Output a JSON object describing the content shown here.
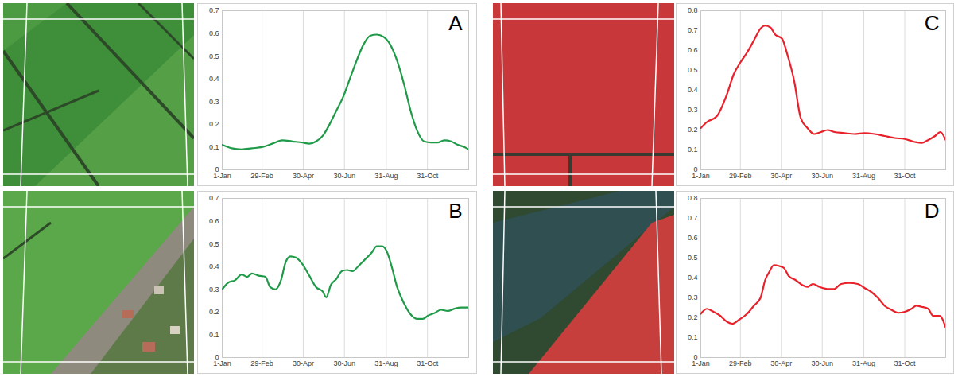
{
  "chart_data": [
    {
      "type": "line",
      "title": "A",
      "color": "#1f9a48",
      "grid": "x",
      "x": [
        1,
        15,
        30,
        45,
        60,
        75,
        90,
        105,
        120,
        130,
        140,
        150,
        160,
        170,
        180,
        190,
        200,
        210,
        220,
        230,
        240,
        250,
        260,
        270,
        280,
        290,
        300,
        310,
        320,
        330,
        340,
        350,
        360,
        366
      ],
      "values": [
        0.11,
        0.095,
        0.09,
        0.095,
        0.1,
        0.115,
        0.13,
        0.125,
        0.12,
        0.115,
        0.125,
        0.15,
        0.2,
        0.26,
        0.32,
        0.4,
        0.48,
        0.55,
        0.59,
        0.595,
        0.585,
        0.55,
        0.48,
        0.38,
        0.26,
        0.17,
        0.125,
        0.12,
        0.12,
        0.13,
        0.125,
        0.11,
        0.1,
        0.09
      ],
      "xlim": [
        1,
        366
      ],
      "xticks": [
        {
          "value": 1,
          "label": "1-Jan"
        },
        {
          "value": 60,
          "label": "29-Feb"
        },
        {
          "value": 121,
          "label": "30-Apr"
        },
        {
          "value": 182,
          "label": "30-Jun"
        },
        {
          "value": 244,
          "label": "31-Aug"
        },
        {
          "value": 305,
          "label": "31-Oct"
        }
      ],
      "ylim": [
        0,
        0.7
      ],
      "yticks": [
        0,
        0.1,
        0.2,
        0.3,
        0.4,
        0.5,
        0.6,
        0.7
      ]
    },
    {
      "type": "line",
      "title": "B",
      "color": "#1f9a48",
      "grid": "x",
      "x": [
        1,
        10,
        20,
        30,
        38,
        45,
        55,
        65,
        72,
        80,
        88,
        95,
        102,
        110,
        120,
        130,
        140,
        150,
        155,
        162,
        170,
        178,
        186,
        194,
        202,
        212,
        222,
        230,
        238,
        245,
        252,
        260,
        270,
        280,
        290,
        298,
        306,
        315,
        325,
        335,
        345,
        355,
        366
      ],
      "values": [
        0.3,
        0.33,
        0.34,
        0.365,
        0.355,
        0.37,
        0.36,
        0.355,
        0.31,
        0.3,
        0.34,
        0.42,
        0.445,
        0.44,
        0.41,
        0.36,
        0.31,
        0.29,
        0.265,
        0.32,
        0.345,
        0.38,
        0.385,
        0.38,
        0.4,
        0.43,
        0.46,
        0.49,
        0.49,
        0.465,
        0.4,
        0.31,
        0.24,
        0.19,
        0.17,
        0.17,
        0.185,
        0.195,
        0.21,
        0.205,
        0.215,
        0.22,
        0.22
      ],
      "xlim": [
        1,
        366
      ],
      "xticks": [
        {
          "value": 1,
          "label": "1-Jan"
        },
        {
          "value": 60,
          "label": "29-Feb"
        },
        {
          "value": 121,
          "label": "30-Apr"
        },
        {
          "value": 182,
          "label": "30-Jun"
        },
        {
          "value": 244,
          "label": "31-Aug"
        },
        {
          "value": 305,
          "label": "31-Oct"
        }
      ],
      "ylim": [
        0,
        0.7
      ],
      "yticks": [
        0,
        0.1,
        0.2,
        0.3,
        0.4,
        0.5,
        0.6,
        0.7
      ]
    },
    {
      "type": "line",
      "title": "C",
      "color": "#e8212b",
      "grid": "x",
      "x": [
        1,
        10,
        25,
        40,
        50,
        60,
        70,
        80,
        90,
        97,
        105,
        112,
        122,
        130,
        140,
        150,
        160,
        170,
        180,
        190,
        200,
        215,
        230,
        245,
        260,
        275,
        290,
        305,
        320,
        330,
        340,
        350,
        358,
        366
      ],
      "values": [
        0.21,
        0.24,
        0.27,
        0.38,
        0.48,
        0.54,
        0.59,
        0.65,
        0.71,
        0.725,
        0.715,
        0.68,
        0.66,
        0.58,
        0.45,
        0.26,
        0.21,
        0.18,
        0.19,
        0.2,
        0.19,
        0.185,
        0.18,
        0.185,
        0.18,
        0.17,
        0.16,
        0.155,
        0.14,
        0.135,
        0.15,
        0.17,
        0.19,
        0.15
      ],
      "xlim": [
        1,
        366
      ],
      "xticks": [
        {
          "value": 1,
          "label": "1-Jan"
        },
        {
          "value": 60,
          "label": "29-Feb"
        },
        {
          "value": 121,
          "label": "30-Apr"
        },
        {
          "value": 182,
          "label": "30-Jun"
        },
        {
          "value": 244,
          "label": "31-Aug"
        },
        {
          "value": 305,
          "label": "31-Oct"
        }
      ],
      "ylim": [
        0,
        0.8
      ],
      "yticks": [
        0,
        0.1,
        0.2,
        0.3,
        0.4,
        0.5,
        0.6,
        0.7,
        0.8
      ]
    },
    {
      "type": "line",
      "title": "D",
      "color": "#e8212b",
      "grid": "x",
      "x": [
        1,
        10,
        20,
        30,
        40,
        48,
        58,
        70,
        80,
        90,
        97,
        103,
        110,
        118,
        125,
        132,
        142,
        152,
        160,
        168,
        178,
        190,
        200,
        210,
        222,
        235,
        245,
        255,
        265,
        275,
        285,
        295,
        305,
        315,
        322,
        330,
        340,
        347,
        357,
        366
      ],
      "values": [
        0.22,
        0.245,
        0.23,
        0.21,
        0.18,
        0.17,
        0.19,
        0.22,
        0.26,
        0.3,
        0.39,
        0.43,
        0.465,
        0.46,
        0.45,
        0.41,
        0.39,
        0.365,
        0.355,
        0.37,
        0.355,
        0.345,
        0.345,
        0.37,
        0.375,
        0.37,
        0.35,
        0.33,
        0.3,
        0.26,
        0.24,
        0.225,
        0.23,
        0.245,
        0.26,
        0.255,
        0.245,
        0.21,
        0.21,
        0.15
      ],
      "xlim": [
        1,
        366
      ],
      "xticks": [
        {
          "value": 1,
          "label": "1-Jan"
        },
        {
          "value": 60,
          "label": "29-Feb"
        },
        {
          "value": 121,
          "label": "30-Apr"
        },
        {
          "value": 182,
          "label": "30-Jun"
        },
        {
          "value": 244,
          "label": "31-Aug"
        },
        {
          "value": 305,
          "label": "31-Oct"
        }
      ],
      "ylim": [
        0,
        0.8
      ],
      "yticks": [
        0,
        0.1,
        0.2,
        0.3,
        0.4,
        0.5,
        0.6,
        0.7,
        0.8
      ]
    }
  ]
}
